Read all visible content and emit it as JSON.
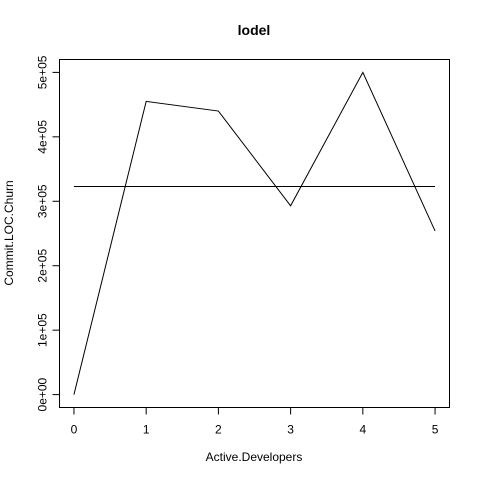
{
  "chart_data": {
    "type": "line",
    "title": "lodel",
    "xlabel": "Active.Developers",
    "ylabel": "Commit.LOC.Churn",
    "x": [
      0,
      1,
      2,
      3,
      4,
      5
    ],
    "series": [
      {
        "values": [
          0,
          455000,
          440000,
          293000,
          500000,
          254000
        ]
      }
    ],
    "reference_line": {
      "y": 323000
    },
    "x_ticks": [
      0,
      1,
      2,
      3,
      4,
      5
    ],
    "x_tick_labels": [
      "0",
      "1",
      "2",
      "3",
      "4",
      "5"
    ],
    "y_ticks": [
      0,
      100000,
      200000,
      300000,
      400000,
      500000
    ],
    "y_tick_labels": [
      "0e+00",
      "1e+05",
      "2e+05",
      "3e+05",
      "4e+05",
      "5e+05"
    ],
    "xlim": [
      -0.2,
      5.2
    ],
    "ylim": [
      -20000,
      520000
    ],
    "grid": false,
    "colors": {
      "line": "#000000",
      "background": "#ffffff"
    }
  }
}
